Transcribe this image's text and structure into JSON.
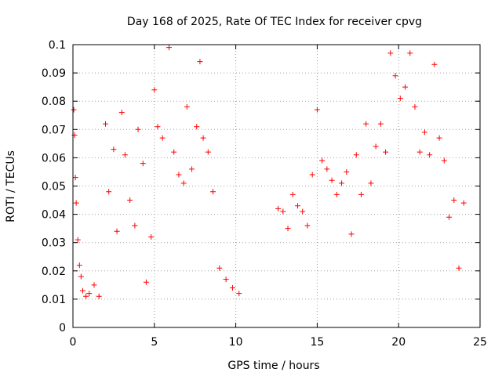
{
  "chart_data": {
    "type": "scatter",
    "title": "Day 168 of 2025, Rate Of TEC Index for receiver cpvg",
    "xlabel": "GPS time / hours",
    "ylabel": "ROTI / TECUs",
    "xlim": [
      0,
      25
    ],
    "ylim": [
      0,
      0.1
    ],
    "xticks": [
      "0",
      "5",
      "10",
      "15",
      "20",
      "25"
    ],
    "yticks": [
      "0",
      "0.01",
      "0.02",
      "0.03",
      "0.04",
      "0.05",
      "0.06",
      "0.07",
      "0.08",
      "0.09",
      "0.1"
    ],
    "grid": true,
    "marker": "plus",
    "color": "#ff0000",
    "series": [
      {
        "x": [
          0.05,
          0.1,
          0.15,
          0.2,
          0.3,
          0.4,
          0.5,
          0.6,
          0.8,
          1.0,
          1.3,
          1.6,
          2.0,
          2.2,
          2.5,
          2.7,
          3.0,
          3.2,
          3.5,
          3.8,
          4.0,
          4.3,
          4.5,
          4.8,
          5.0,
          5.2,
          5.5,
          5.9,
          6.2,
          6.5,
          6.8,
          7.0,
          7.3,
          7.6,
          7.8,
          8.0,
          8.3,
          8.6,
          9.0,
          9.4,
          9.8,
          10.2,
          12.6,
          12.9,
          13.2,
          13.5,
          13.8,
          14.1,
          14.4,
          14.7,
          15.0,
          15.3,
          15.6,
          15.9,
          16.2,
          16.5,
          16.8,
          17.1,
          17.4,
          17.7,
          18.0,
          18.3,
          18.6,
          18.9,
          19.2,
          19.5,
          19.8,
          20.1,
          20.4,
          20.7,
          21.0,
          21.3,
          21.6,
          21.9,
          22.2,
          22.5,
          22.8,
          23.1,
          23.4,
          23.7,
          24.0
        ],
        "y": [
          0.077,
          0.068,
          0.053,
          0.044,
          0.031,
          0.022,
          0.018,
          0.013,
          0.011,
          0.012,
          0.015,
          0.011,
          0.072,
          0.048,
          0.063,
          0.034,
          0.076,
          0.061,
          0.045,
          0.036,
          0.07,
          0.058,
          0.016,
          0.032,
          0.084,
          0.071,
          0.067,
          0.099,
          0.062,
          0.054,
          0.051,
          0.078,
          0.056,
          0.071,
          0.094,
          0.067,
          0.062,
          0.048,
          0.021,
          0.017,
          0.014,
          0.012,
          0.042,
          0.041,
          0.035,
          0.047,
          0.043,
          0.041,
          0.036,
          0.054,
          0.077,
          0.059,
          0.056,
          0.052,
          0.047,
          0.051,
          0.055,
          0.033,
          0.061,
          0.047,
          0.072,
          0.051,
          0.064,
          0.072,
          0.062,
          0.097,
          0.089,
          0.081,
          0.085,
          0.097,
          0.078,
          0.062,
          0.069,
          0.061,
          0.093,
          0.067,
          0.059,
          0.039,
          0.045,
          0.021,
          0.044
        ]
      }
    ]
  }
}
